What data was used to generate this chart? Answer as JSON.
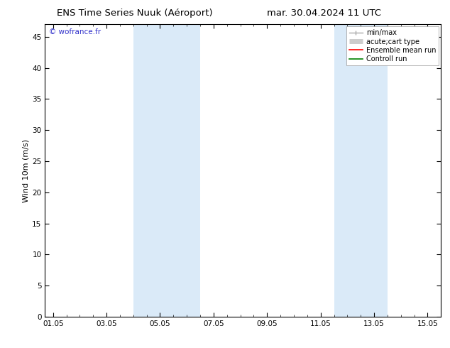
{
  "title_left": "ENS Time Series Nuuk (Aéroport)",
  "title_right": "mar. 30.04.2024 11 UTC",
  "xlabel_ticks": [
    "01.05",
    "03.05",
    "05.05",
    "07.05",
    "09.05",
    "11.05",
    "13.05",
    "15.05"
  ],
  "ylabel": "Wind 10m (m/s)",
  "ylim": [
    0,
    47
  ],
  "yticks": [
    0,
    5,
    10,
    15,
    20,
    25,
    30,
    35,
    40,
    45
  ],
  "background_color": "#ffffff",
  "plot_bg_color": "#ffffff",
  "watermark": "© wofrance.fr",
  "watermark_color": "#3333cc",
  "band_color": "#daeaf8",
  "band_ranges": [
    [
      3.0,
      5.5
    ],
    [
      10.5,
      12.5
    ]
  ],
  "legend_labels": [
    "min/max",
    "acute;cart type",
    "Ensemble mean run",
    "Controll run"
  ],
  "legend_colors": [
    "#aaaaaa",
    "#cccccc",
    "#ff0000",
    "#008000"
  ],
  "title_fontsize": 9.5,
  "tick_fontsize": 7.5,
  "ylabel_fontsize": 8,
  "legend_fontsize": 7,
  "watermark_fontsize": 7.5
}
